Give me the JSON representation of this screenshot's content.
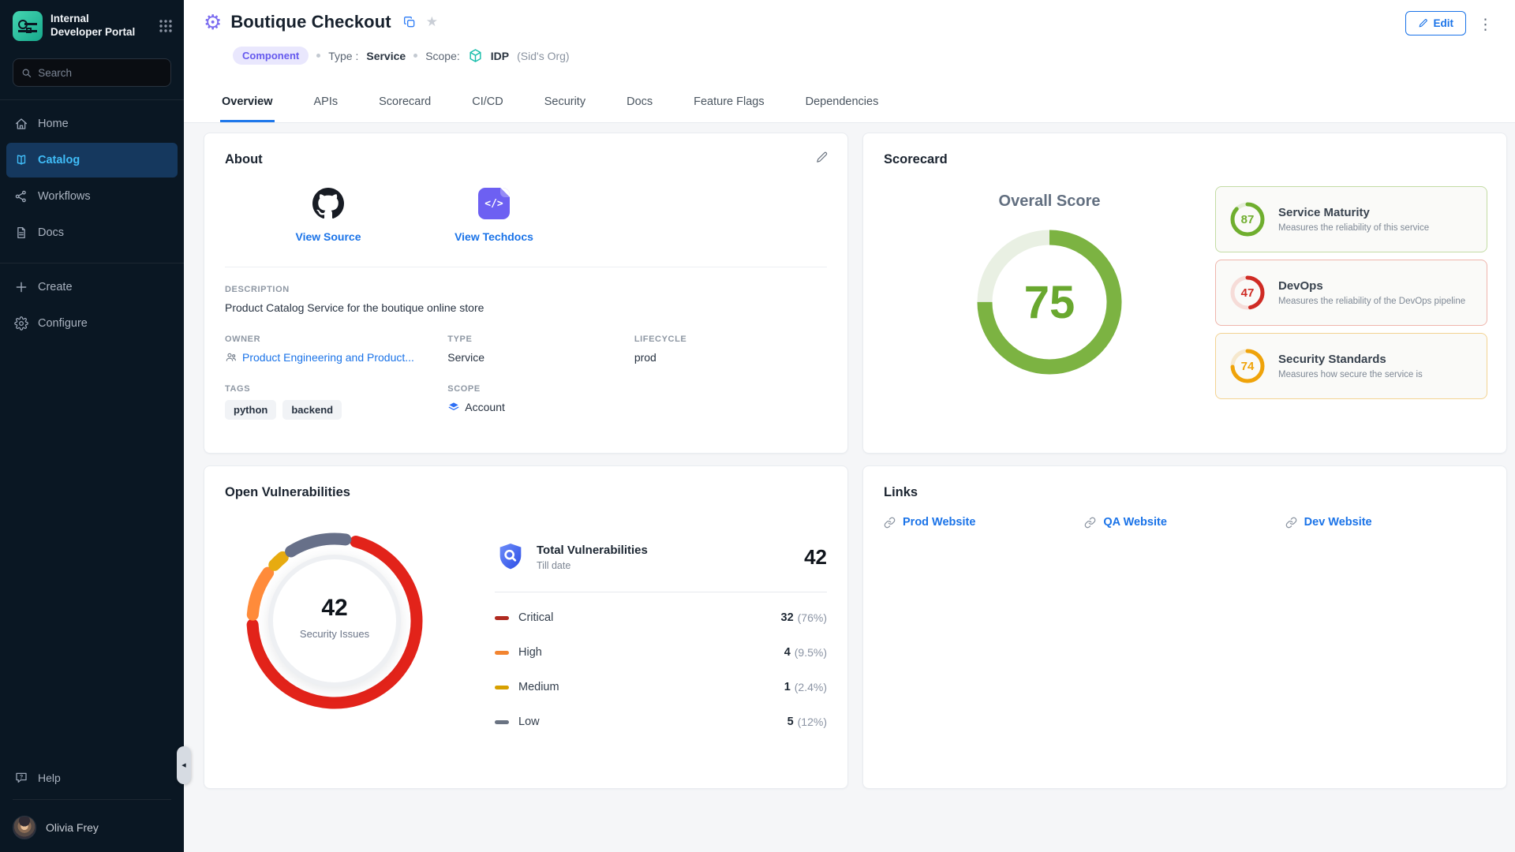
{
  "sidebar": {
    "brand_line1": "Internal",
    "brand_line2": "Developer Portal",
    "search_placeholder": "Search",
    "items": [
      {
        "label": "Home",
        "active": false
      },
      {
        "label": "Catalog",
        "active": true
      },
      {
        "label": "Workflows",
        "active": false
      },
      {
        "label": "Docs",
        "active": false
      }
    ],
    "create_label": "Create",
    "configure_label": "Configure",
    "help_label": "Help",
    "user_name": "Olivia Frey"
  },
  "header": {
    "title": "Boutique Checkout",
    "entity_badge": "Component",
    "type_label": "Type :",
    "type_value": "Service",
    "scope_label": "Scope:",
    "scope_value": "IDP",
    "scope_org": "(Sid's Org)",
    "edit_label": "Edit"
  },
  "tabs": [
    {
      "label": "Overview",
      "active": true
    },
    {
      "label": "APIs",
      "active": false
    },
    {
      "label": "Scorecard",
      "active": false
    },
    {
      "label": "CI/CD",
      "active": false
    },
    {
      "label": "Security",
      "active": false
    },
    {
      "label": "Docs",
      "active": false
    },
    {
      "label": "Feature Flags",
      "active": false
    },
    {
      "label": "Dependencies",
      "active": false
    }
  ],
  "about": {
    "title": "About",
    "source_link": "View Source",
    "techdocs_link": "View Techdocs",
    "description_label": "DESCRIPTION",
    "description": "Product Catalog Service for the boutique online store",
    "owner_label": "OWNER",
    "owner": "Product Engineering and Product...",
    "type_label": "TYPE",
    "type": "Service",
    "lifecycle_label": "LIFECYCLE",
    "lifecycle": "prod",
    "tags_label": "TAGS",
    "tags": [
      "python",
      "backend"
    ],
    "scope_label": "SCOPE",
    "scope": "Account"
  },
  "scorecard": {
    "title": "Scorecard",
    "overall_label": "Overall Score",
    "overall_score": 75,
    "overall_color": "#7cb342",
    "overall_track": "#e9f0e3",
    "cards": [
      {
        "score": 87,
        "title": "Service Maturity",
        "desc": "Measures the reliability of this service",
        "color": "#6fae2e",
        "track": "#e4eed7",
        "border": "#c3dca4"
      },
      {
        "score": 47,
        "title": "DevOps",
        "desc": "Measures the reliability of the DevOps pipeline",
        "color": "#cf2b24",
        "track": "#f6dcd8",
        "border": "#efb5ac"
      },
      {
        "score": 74,
        "title": "Security Standards",
        "desc": "Measures how secure the service is",
        "color": "#efa30a",
        "track": "#f6e8cd",
        "border": "#f3d392"
      }
    ]
  },
  "vulnerabilities": {
    "title": "Open Vulnerabilities",
    "donut_value": "42",
    "donut_label": "Security Issues",
    "total_title": "Total Vulnerabilities",
    "total_subtitle": "Till date",
    "total_value": "42",
    "rows": [
      {
        "label": "Critical",
        "count": "32",
        "pct_display": "(76%)",
        "pct": 76,
        "arc_color": "#e2231a",
        "dash_color": "#b02a20"
      },
      {
        "label": "High",
        "count": "4",
        "pct_display": "(9.5%)",
        "pct": 9.5,
        "arc_color": "#ff8b3a",
        "dash_color": "#f28430"
      },
      {
        "label": "Medium",
        "count": "1",
        "pct_display": "(2.4%)",
        "pct": 2.4,
        "arc_color": "#e7ab10",
        "dash_color": "#d7a000"
      },
      {
        "label": "Low",
        "count": "5",
        "pct_display": "(12%)",
        "pct": 12,
        "arc_color": "#677089",
        "dash_color": "#6a7382"
      }
    ]
  },
  "links": {
    "title": "Links",
    "items": [
      {
        "label": "Prod Website"
      },
      {
        "label": "QA Website"
      },
      {
        "label": "Dev Website"
      }
    ]
  }
}
